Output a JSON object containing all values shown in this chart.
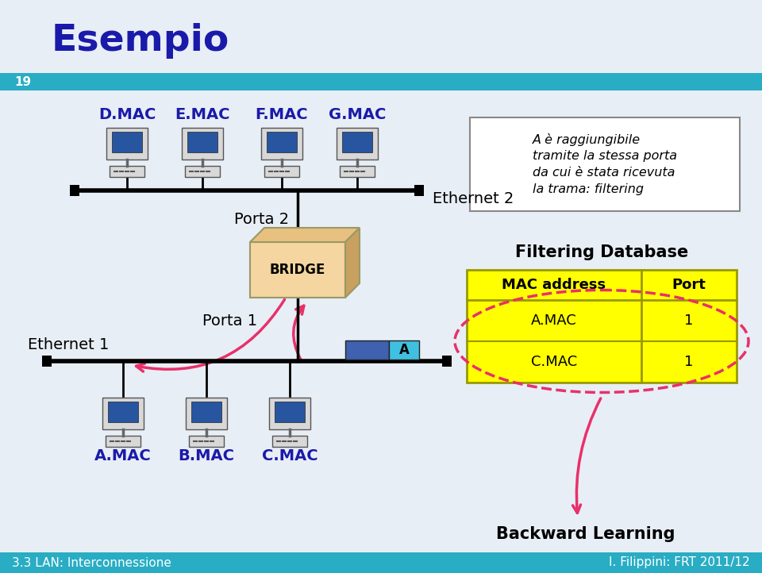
{
  "title": "Esempio",
  "slide_number": "19",
  "footer_left": "3.3 LAN: Interconnessione",
  "footer_right": "I. Filippini: FRT 2011/12",
  "bg_color": "#e8eef5",
  "title_color": "#1a1aaa",
  "header_bar_color": "#29adc4",
  "top_computers": [
    "D.MAC",
    "E.MAC",
    "F.MAC",
    "G.MAC"
  ],
  "bottom_computers": [
    "A.MAC",
    "B.MAC",
    "C.MAC"
  ],
  "mac_label_color": "#1a1aaa",
  "ethernet1_label": "Ethernet 1",
  "ethernet2_label": "Ethernet 2",
  "porta1_label": "Porta 1",
  "porta2_label": "Porta 2",
  "bridge_label": "BRIDGE",
  "bridge_face_color": "#f5d5a0",
  "bridge_top_color": "#e8c080",
  "bridge_right_color": "#c8a060",
  "packet_color1": "#4060b0",
  "packet_color2": "#40c0e0",
  "packet_label": "A",
  "annotation_text": "A è raggiungibile\ntramite la stessa porta\nda cui è stata ricevuta\nla trama: filtering",
  "db_title": "Filtering Database",
  "db_bg_color": "#ffff00",
  "db_col1": [
    "A.MAC",
    "C.MAC"
  ],
  "db_col2": [
    "1",
    "1"
  ],
  "db_col_headers": [
    "MAC address",
    "Port"
  ],
  "backward_label": "Backward Learning",
  "arrow_color": "#e8306a",
  "footer_bg": "#29adc4",
  "footer_text_color": "#ffffff",
  "slide_num_bg": "#29adc4",
  "slide_num_color": "#ffffff",
  "white_bg": "#ffffff",
  "monitor_body_color": "#d8d8d8",
  "monitor_screen_color": "#2855a0",
  "monitor_border_color": "#555555",
  "cpu_color": "#d8d8d8"
}
